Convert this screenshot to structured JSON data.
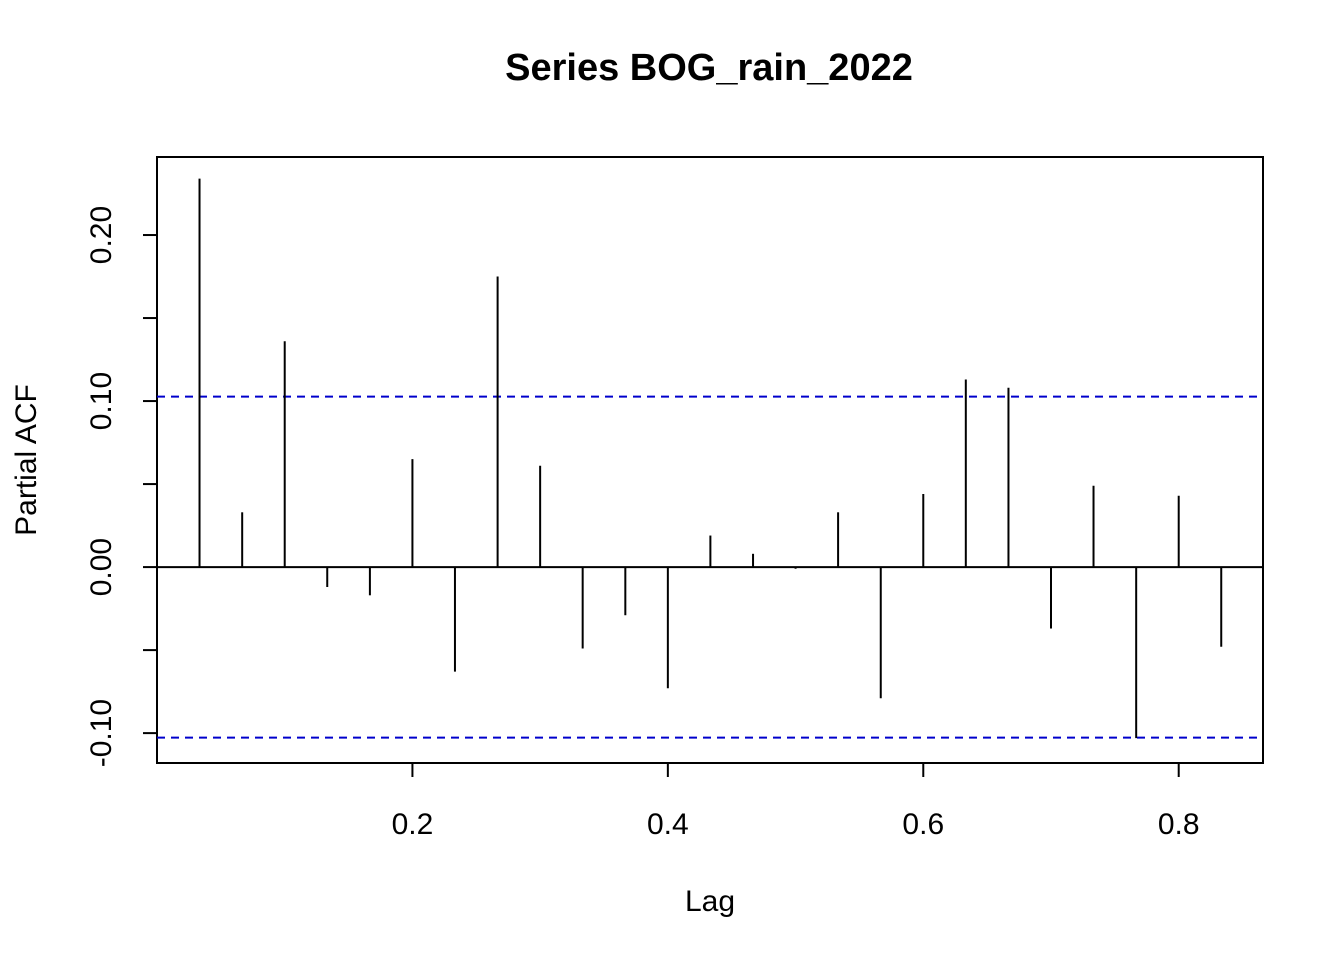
{
  "chart_data": {
    "type": "bar",
    "title": "Series  BOG_rain_2022",
    "xlabel": "Lag",
    "ylabel": "Partial ACF",
    "xlim": [
      0.0,
      0.866
    ],
    "ylim": [
      -0.118,
      0.247
    ],
    "x_ticks": [
      {
        "value": 0.2,
        "label": "0.2"
      },
      {
        "value": 0.4,
        "label": "0.4"
      },
      {
        "value": 0.6,
        "label": "0.6"
      },
      {
        "value": 0.8,
        "label": "0.8"
      }
    ],
    "y_ticks": [
      {
        "value": -0.1,
        "label": "-0.10"
      },
      {
        "value": -0.05,
        "label": ""
      },
      {
        "value": 0.0,
        "label": "0.00"
      },
      {
        "value": 0.05,
        "label": ""
      },
      {
        "value": 0.1,
        "label": "0.10"
      },
      {
        "value": 0.15,
        "label": ""
      },
      {
        "value": 0.2,
        "label": "0.20"
      }
    ],
    "confidence_bound": 0.1027,
    "confidence_color": "#0000cc",
    "bar_color": "#000000",
    "grid": false,
    "lags": [
      0.0333,
      0.0667,
      0.1,
      0.1333,
      0.1667,
      0.2,
      0.2333,
      0.2667,
      0.3,
      0.3333,
      0.3667,
      0.4,
      0.4333,
      0.4667,
      0.5,
      0.5333,
      0.5667,
      0.6,
      0.6333,
      0.6667,
      0.7,
      0.7333,
      0.7667,
      0.8,
      0.8333
    ],
    "values": [
      0.234,
      0.033,
      0.136,
      -0.012,
      -0.017,
      0.065,
      -0.063,
      0.175,
      0.061,
      -0.049,
      -0.029,
      -0.073,
      0.019,
      0.008,
      -0.001,
      0.033,
      -0.079,
      0.044,
      0.113,
      0.108,
      -0.037,
      0.049,
      -0.103,
      0.043,
      -0.048
    ]
  }
}
